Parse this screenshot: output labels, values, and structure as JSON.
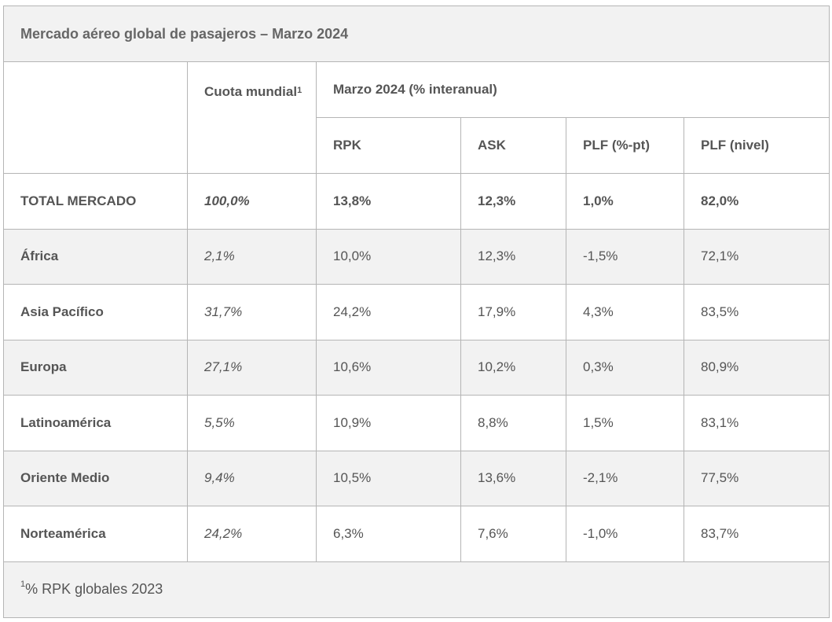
{
  "title": "Mercado aéreo global de pasajeros – Marzo 2024",
  "header": {
    "share_label": "Cuota mundial",
    "share_sup": "1",
    "group_label": "Marzo 2024 (% interanual)",
    "columns": [
      "RPK",
      "ASK",
      "PLF (%-pt)",
      "PLF (nivel)"
    ]
  },
  "rows": [
    {
      "region": "TOTAL MERCADO",
      "share": "100,0%",
      "rpk": "13,8%",
      "ask": "12,3%",
      "plf_pt": "1,0%",
      "plf_level": "82,0%"
    },
    {
      "region": "África",
      "share": "2,1%",
      "rpk": "10,0%",
      "ask": "12,3%",
      "plf_pt": "-1,5%",
      "plf_level": "72,1%"
    },
    {
      "region": "Asia Pacífico",
      "share": "31,7%",
      "rpk": "24,2%",
      "ask": "17,9%",
      "plf_pt": "4,3%",
      "plf_level": "83,5%"
    },
    {
      "region": "Europa",
      "share": "27,1%",
      "rpk": "10,6%",
      "ask": "10,2%",
      "plf_pt": "0,3%",
      "plf_level": "80,9%"
    },
    {
      "region": "Latinoamérica",
      "share": "5,5%",
      "rpk": "10,9%",
      "ask": "8,8%",
      "plf_pt": "1,5%",
      "plf_level": "83,1%"
    },
    {
      "region": "Oriente Medio",
      "share": "9,4%",
      "rpk": "10,5%",
      "ask": "13,6%",
      "plf_pt": "-2,1%",
      "plf_level": "77,5%"
    },
    {
      "region": "Norteamérica",
      "share": "24,2%",
      "rpk": "6,3%",
      "ask": "7,6%",
      "plf_pt": "-1,0%",
      "plf_level": "83,7%"
    }
  ],
  "footnote": {
    "sup": "1",
    "text": "% RPK globales 2023"
  }
}
